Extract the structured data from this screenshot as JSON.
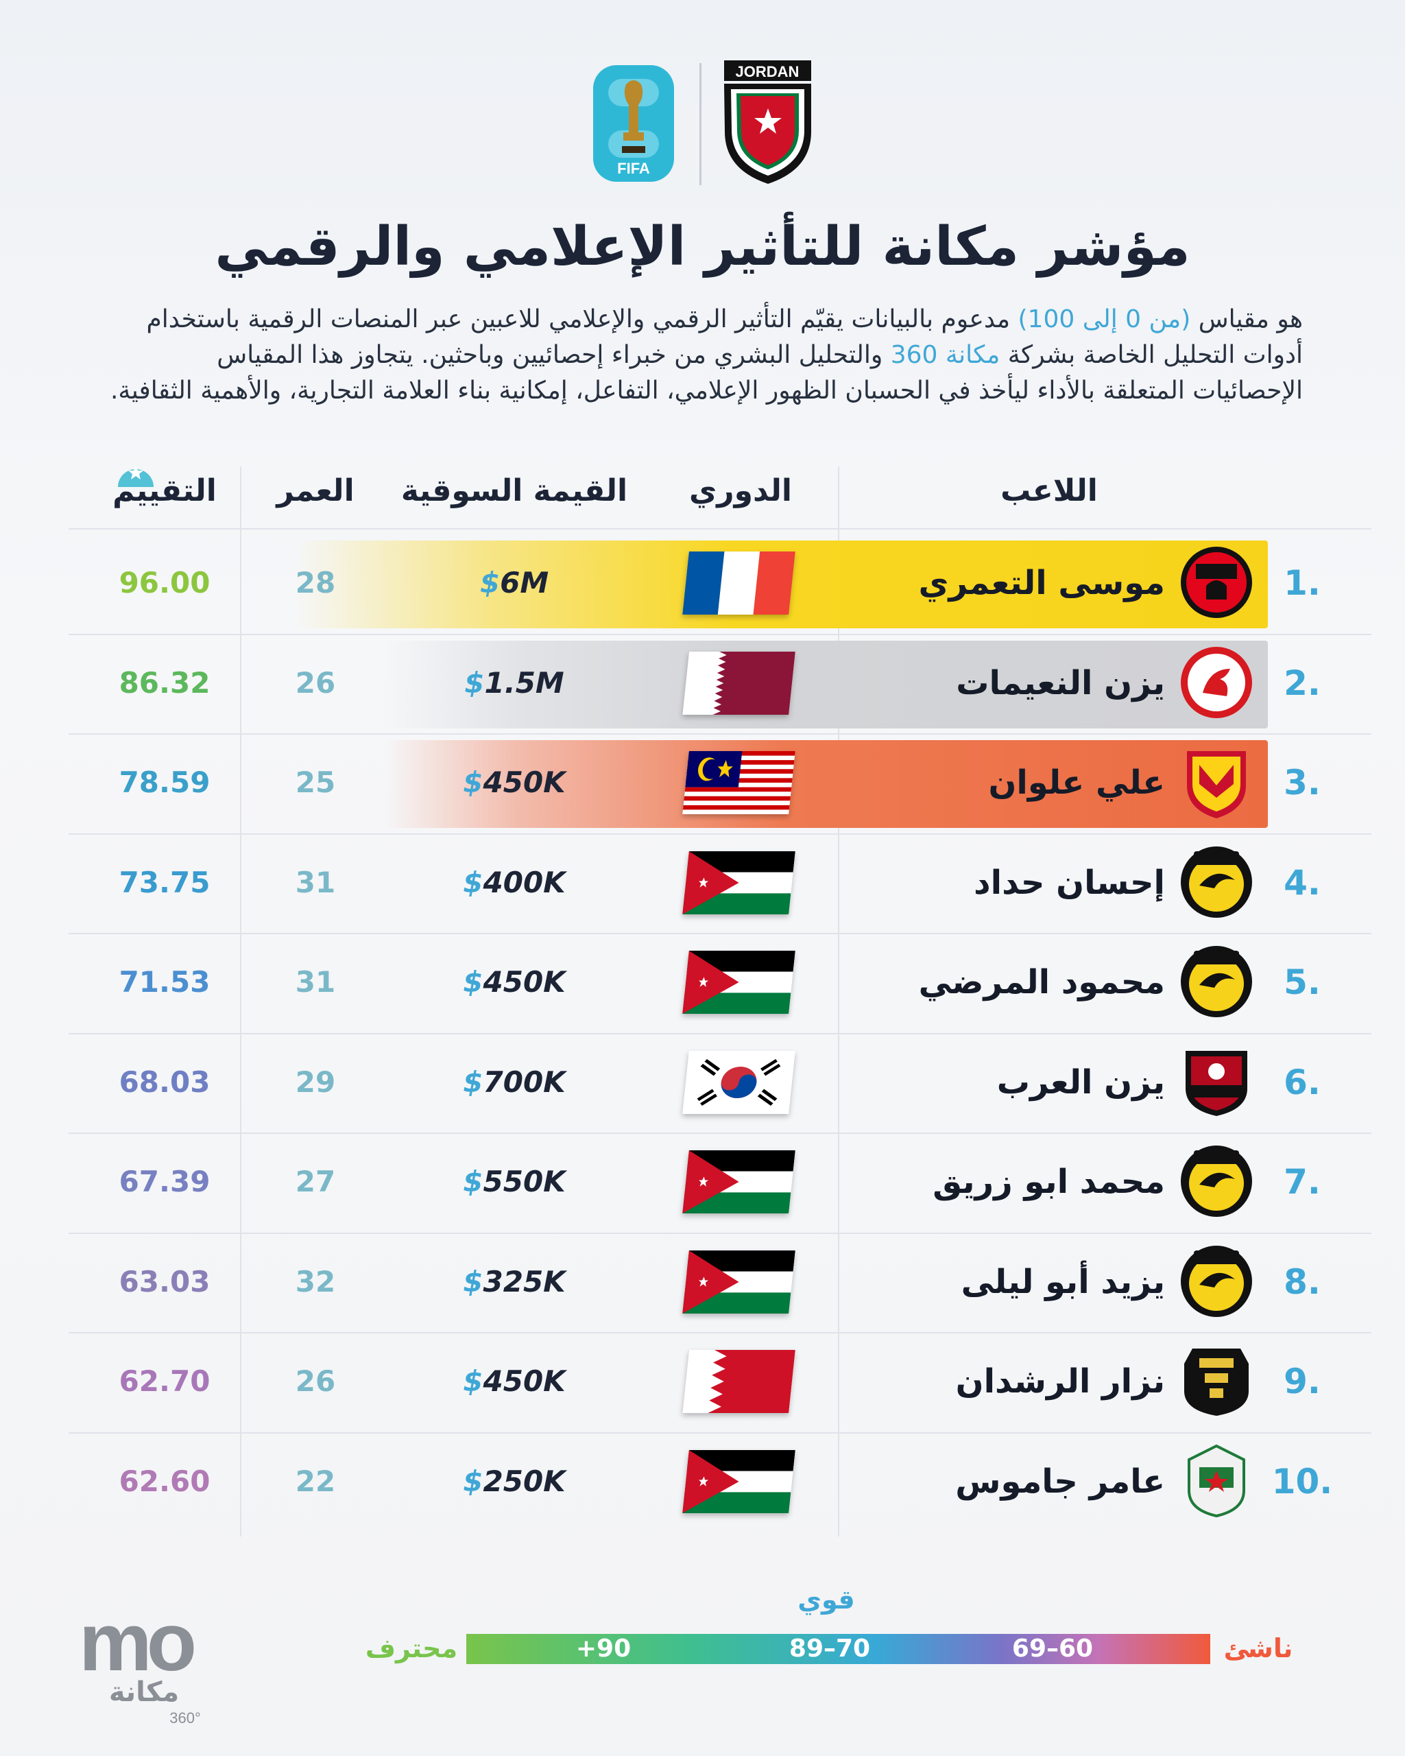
{
  "header": {
    "fifa_logo_text": "FIFA",
    "crest_text": "JORDAN"
  },
  "title": "مؤشر مكانة للتأثير الإعلامي والرقمي",
  "description": {
    "p1": "هو مقياس ",
    "range": "(من 0 إلى 100)",
    "p2": " مدعوم بالبيانات يقيّم التأثير الرقمي والإعلامي للاعبين عبر المنصات الرقمية باستخدام أدوات التحليل الخاصة بشركة ",
    "brand": "مكانة 360",
    "p3": " والتحليل البشري من خبراء إحصائيين وباحثين. يتجاوز هذا المقياس الإحصائيات المتعلقة بالأداء ليأخذ في الحسبان الظهور الإعلامي، التفاعل، إمكانية بناء العلامة التجارية، والأهمية الثقافية."
  },
  "columns": {
    "player": "اللاعب",
    "league": "الدوري",
    "market_value": "القيمة السوقية",
    "age": "العمر",
    "rating": "التقييم"
  },
  "players": [
    {
      "rank": "1.",
      "name": "موسى التعمري",
      "league_flag": "france",
      "value": "6M",
      "age": "28",
      "rating": "96.00",
      "rating_color": "#8cc63f",
      "club": "stade-rennais",
      "highlight": "gold"
    },
    {
      "rank": "2.",
      "name": "يزن النعيمات",
      "league_flag": "qatar",
      "value": "1.5M",
      "age": "26",
      "rating": "86.32",
      "rating_color": "#5cb85c",
      "club": "al-arabi",
      "highlight": "silver"
    },
    {
      "rank": "3.",
      "name": "علي علوان",
      "league_flag": "malaysia",
      "value": "450K",
      "age": "25",
      "rating": "78.59",
      "rating_color": "#3aa0c9",
      "club": "selangor",
      "highlight": "bronze"
    },
    {
      "rank": "4.",
      "name": "إحسان حداد",
      "league_flag": "jordan",
      "value": "400K",
      "age": "31",
      "rating": "73.75",
      "rating_color": "#3a9bcf",
      "club": "al-hussein",
      "highlight": ""
    },
    {
      "rank": "5.",
      "name": "محمود المرضي",
      "league_flag": "jordan",
      "value": "450K",
      "age": "31",
      "rating": "71.53",
      "rating_color": "#4b8fd0",
      "club": "al-hussein",
      "highlight": ""
    },
    {
      "rank": "6.",
      "name": "يزن العرب",
      "league_flag": "korea",
      "value": "700K",
      "age": "29",
      "rating": "68.03",
      "rating_color": "#6f7fc4",
      "club": "fc-seoul",
      "highlight": ""
    },
    {
      "rank": "7.",
      "name": "محمد ابو زريق",
      "league_flag": "jordan",
      "value": "550K",
      "age": "27",
      "rating": "67.39",
      "rating_color": "#7780c0",
      "club": "al-hussein",
      "highlight": ""
    },
    {
      "rank": "8.",
      "name": "يزيد أبو ليلى",
      "league_flag": "jordan",
      "value": "325K",
      "age": "32",
      "rating": "63.03",
      "rating_color": "#8a7fb6",
      "club": "al-hussein",
      "highlight": ""
    },
    {
      "rank": "9.",
      "name": "نزار الرشدان",
      "league_flag": "bahrain",
      "value": "450K",
      "age": "26",
      "rating": "62.70",
      "rating_color": "#a877b8",
      "club": "al-khaldiya",
      "highlight": ""
    },
    {
      "rank": "10.",
      "name": "عامر جاموس",
      "league_flag": "jordan",
      "value": "250K",
      "age": "22",
      "rating": "62.60",
      "rating_color": "#b07ab4",
      "club": "al-wehdat",
      "highlight": ""
    }
  ],
  "scale": {
    "strong_label": "قوي",
    "left_end": "محترف",
    "right_end": "ناشئ",
    "seg_90": "+90",
    "seg_70_89": "89–70",
    "seg_60_69": "69–60"
  },
  "brand": {
    "logo_text": "mo",
    "arabic": "مكانة",
    "suffix": "360°"
  },
  "colors": {
    "accent": "#3fa7d6",
    "gold": "#f6d21a",
    "silver": "#d2d3d6",
    "bronze": "#ec7048"
  }
}
